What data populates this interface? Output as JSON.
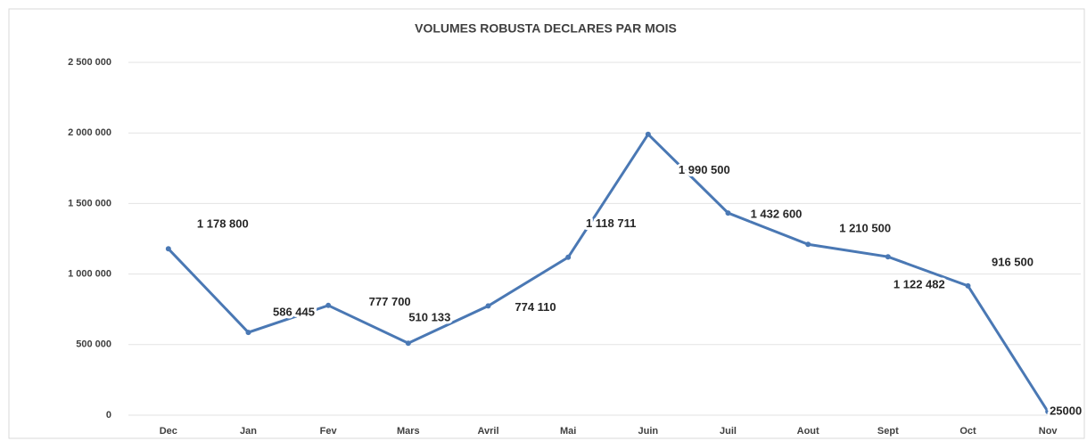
{
  "chart_data": {
    "type": "line",
    "title": "VOLUMES ROBUSTA  DECLARES PAR MOIS",
    "categories": [
      "Dec",
      "Jan",
      "Fev",
      "Mars",
      "Avril",
      "Mai",
      "Juin",
      "Juil",
      "Aout",
      "Sept",
      "Oct",
      "Nov"
    ],
    "series": [
      {
        "name": "Volumes",
        "color": "#4a78b4",
        "values": [
          1178800,
          586445,
          777700,
          510133,
          774110,
          1118711,
          1990500,
          1432600,
          1210500,
          1122482,
          916500,
          25000
        ],
        "value_labels": [
          "1 178 800",
          "586 445",
          "777 700",
          "510 133",
          "774 110",
          "1 118 711",
          "1 990 500",
          "1 432 600",
          "1 210 500",
          "1 122 482",
          "916 500",
          "25000"
        ]
      }
    ],
    "ylim": [
      0,
      2500000
    ],
    "yticks": [
      0,
      {
        "value": 500000,
        "label": "500 000"
      },
      {
        "value": 1000000,
        "label": "1 000 000"
      },
      {
        "value": 1500000,
        "label": "1 500 000"
      },
      {
        "value": 2000000,
        "label": "2 000 000"
      },
      {
        "value": 2500000,
        "label": "2 500 000"
      }
    ],
    "grid": true
  }
}
